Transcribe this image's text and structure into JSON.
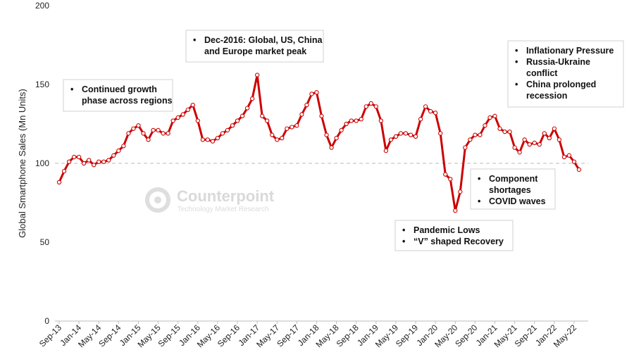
{
  "chart_data": {
    "type": "line",
    "title": "",
    "ylabel": "Global Smartphone Sales (Mn Units)",
    "xlabel": "",
    "ylim": [
      0,
      200
    ],
    "yticks": [
      0,
      50,
      100,
      150,
      200
    ],
    "reference_line": 100,
    "x_tick_labels": [
      "Sep-13",
      "Jan-14",
      "May-14",
      "Sep-14",
      "Jan-15",
      "May-15",
      "Sep-15",
      "Jan-16",
      "May-16",
      "Sep-16",
      "Jan-17",
      "May-17",
      "Sep-17",
      "Jan-18",
      "May-18",
      "Sep-18",
      "Jan-19",
      "May-19",
      "Sep-19",
      "Jan-20",
      "May-20",
      "Sep-20",
      "Jan-21",
      "May-21",
      "Sep-21",
      "Jan-22",
      "May-22"
    ],
    "series_color": "#cc0000",
    "series": [
      {
        "values": [
          88,
          95,
          101,
          104,
          104,
          100,
          102,
          99,
          101,
          101,
          102,
          105,
          108,
          111,
          119,
          122,
          124,
          119,
          115,
          121,
          121,
          119,
          119,
          127,
          129,
          131,
          134,
          137,
          127,
          115,
          115,
          114,
          116,
          119,
          121,
          124,
          127,
          130,
          135,
          141,
          156,
          130,
          127,
          118,
          115,
          116,
          122,
          123,
          124,
          131,
          137,
          144,
          145,
          130,
          118,
          110,
          116,
          121,
          125,
          127,
          127,
          128,
          136,
          138,
          136,
          127,
          108,
          115,
          117,
          119,
          119,
          118,
          117,
          128,
          136,
          133,
          132,
          119,
          93,
          90,
          70,
          82,
          110,
          115,
          118,
          118,
          124,
          129,
          130,
          122,
          120,
          120,
          110,
          107,
          115,
          112,
          113,
          112,
          119,
          116,
          122,
          115,
          104,
          105,
          101,
          96
        ]
      }
    ],
    "annotations": [
      {
        "lines": [
          "Continued growth",
          "phase across regions"
        ]
      },
      {
        "lines": [
          "Dec-2016: Global, US, China",
          "and Europe market peak"
        ]
      },
      {
        "lines": [
          "Inflationary Pressure"
        ],
        "more": [
          [
            "Russia-Ukraine",
            "conflict"
          ],
          [
            "China prolonged",
            "recession"
          ]
        ]
      },
      {
        "lines": [
          "Component",
          "shortages"
        ],
        "more": [
          [
            "COVID waves"
          ]
        ]
      },
      {
        "lines": [
          "Pandemic Lows"
        ],
        "more": [
          [
            "“V” shaped Recovery"
          ]
        ]
      }
    ]
  },
  "watermark": {
    "title": "Counterpoint",
    "subtitle": "Technology Market Research"
  }
}
